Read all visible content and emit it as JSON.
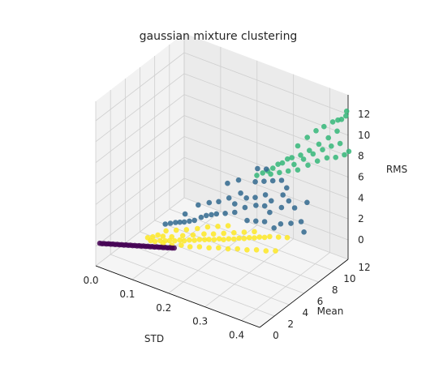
{
  "chart_data": {
    "type": "scatter",
    "projection": "3d",
    "title": "gaussian mixture clustering",
    "xlabel": "STD",
    "ylabel": "Mean",
    "zlabel": "RMS",
    "xlim": [
      0.0,
      0.45
    ],
    "ylim": [
      0,
      12
    ],
    "zlim": [
      0,
      12
    ],
    "xticks": [
      "0.0",
      "0.1",
      "0.2",
      "0.3",
      "0.4"
    ],
    "yticks": [
      "0",
      "2",
      "4",
      "6",
      "8",
      "10",
      "12"
    ],
    "zticks": [
      "0",
      "2",
      "4",
      "6",
      "8",
      "10",
      "12"
    ],
    "grid": true,
    "colormap": "viridis",
    "colors": {
      "cluster_purple": "#440154",
      "cluster_blue": "#31688e",
      "cluster_green": "#35b779",
      "cluster_yellow": "#fde725",
      "pane_left": "#f2f2f2",
      "pane_right": "#ebebeb",
      "pane_floor": "#f5f5f5",
      "grid": "#cfcfcf",
      "text": "#262626"
    },
    "series": [
      {
        "color": "#440154",
        "points": [
          [
            0.005,
            0.3,
            0.2
          ],
          [
            0.01,
            0.35,
            0.2
          ],
          [
            0.015,
            0.4,
            0.25
          ],
          [
            0.02,
            0.45,
            0.25
          ],
          [
            0.025,
            0.5,
            0.3
          ],
          [
            0.03,
            0.55,
            0.3
          ],
          [
            0.035,
            0.6,
            0.35
          ],
          [
            0.04,
            0.65,
            0.35
          ],
          [
            0.045,
            0.7,
            0.4
          ],
          [
            0.05,
            0.75,
            0.4
          ],
          [
            0.055,
            0.8,
            0.45
          ],
          [
            0.06,
            0.85,
            0.45
          ],
          [
            0.065,
            0.9,
            0.5
          ],
          [
            0.07,
            0.95,
            0.5
          ],
          [
            0.075,
            1.0,
            0.55
          ],
          [
            0.08,
            1.05,
            0.55
          ],
          [
            0.085,
            1.1,
            0.6
          ],
          [
            0.09,
            1.15,
            0.6
          ],
          [
            0.095,
            1.2,
            0.65
          ],
          [
            0.1,
            1.25,
            0.65
          ],
          [
            0.105,
            1.3,
            0.7
          ],
          [
            0.11,
            1.35,
            0.7
          ],
          [
            0.115,
            1.4,
            0.75
          ],
          [
            0.12,
            1.45,
            0.75
          ],
          [
            0.125,
            1.5,
            0.8
          ],
          [
            0.13,
            1.55,
            0.8
          ],
          [
            0.135,
            1.6,
            0.85
          ],
          [
            0.14,
            1.65,
            0.85
          ],
          [
            0.145,
            1.7,
            0.9
          ],
          [
            0.15,
            1.75,
            0.9
          ],
          [
            0.155,
            1.8,
            0.95
          ],
          [
            0.16,
            1.85,
            0.95
          ],
          [
            0.165,
            1.9,
            1.0
          ],
          [
            0.17,
            1.95,
            1.0
          ],
          [
            0.175,
            2.0,
            1.05
          ]
        ]
      },
      {
        "color": "#31688e",
        "points": [
          [
            0.2,
            6.8,
            3.2
          ],
          [
            0.22,
            7.2,
            3.6
          ],
          [
            0.24,
            7.0,
            3.4
          ],
          [
            0.26,
            7.6,
            3.9
          ],
          [
            0.28,
            7.8,
            4.1
          ],
          [
            0.3,
            8.2,
            4.4
          ],
          [
            0.32,
            8.0,
            4.2
          ],
          [
            0.25,
            6.5,
            3.0
          ],
          [
            0.27,
            6.9,
            3.5
          ],
          [
            0.29,
            7.4,
            3.7
          ],
          [
            0.31,
            7.6,
            3.8
          ],
          [
            0.33,
            7.3,
            3.6
          ],
          [
            0.35,
            7.9,
            4.0
          ],
          [
            0.36,
            8.4,
            4.5
          ],
          [
            0.34,
            8.6,
            4.7
          ],
          [
            0.23,
            6.2,
            2.8
          ],
          [
            0.21,
            6.0,
            2.6
          ],
          [
            0.19,
            5.6,
            2.4
          ],
          [
            0.18,
            5.4,
            2.2
          ],
          [
            0.17,
            5.0,
            2.0
          ],
          [
            0.16,
            4.8,
            1.9
          ],
          [
            0.15,
            4.6,
            1.8
          ],
          [
            0.14,
            4.5,
            1.7
          ],
          [
            0.13,
            4.4,
            1.6
          ],
          [
            0.24,
            7.8,
            4.0
          ],
          [
            0.26,
            8.8,
            4.8
          ],
          [
            0.28,
            9.0,
            5.0
          ],
          [
            0.3,
            9.2,
            5.2
          ],
          [
            0.32,
            9.4,
            5.4
          ],
          [
            0.34,
            9.1,
            5.1
          ],
          [
            0.22,
            8.5,
            4.6
          ],
          [
            0.2,
            8.0,
            4.3
          ],
          [
            0.38,
            8.2,
            4.2
          ],
          [
            0.4,
            8.9,
            4.6
          ],
          [
            0.37,
            6.8,
            3.3
          ],
          [
            0.39,
            7.2,
            3.4
          ],
          [
            0.41,
            7.6,
            3.6
          ],
          [
            0.36,
            6.4,
            3.0
          ],
          [
            0.33,
            6.6,
            3.1
          ],
          [
            0.18,
            6.5,
            3.0
          ],
          [
            0.16,
            6.0,
            2.8
          ],
          [
            0.2,
            5.8,
            2.5
          ],
          [
            0.25,
            9.6,
            5.5
          ],
          [
            0.27,
            9.8,
            5.6
          ],
          [
            0.43,
            7.0,
            3.2
          ],
          [
            0.29,
            6.2,
            2.9
          ],
          [
            0.31,
            6.4,
            3.0
          ],
          [
            0.12,
            4.2,
            1.5
          ],
          [
            0.11,
            4.0,
            1.4
          ],
          [
            0.14,
            5.2,
            2.1
          ]
        ]
      },
      {
        "color": "#35b779",
        "points": [
          [
            0.3,
            10.5,
            6.2
          ],
          [
            0.32,
            10.8,
            6.8
          ],
          [
            0.34,
            11.0,
            7.2
          ],
          [
            0.36,
            11.2,
            7.8
          ],
          [
            0.38,
            11.5,
            8.5
          ],
          [
            0.4,
            11.8,
            9.2
          ],
          [
            0.42,
            12.0,
            10.0
          ],
          [
            0.41,
            11.9,
            10.8
          ],
          [
            0.43,
            12.1,
            11.2
          ],
          [
            0.44,
            12.2,
            11.6
          ],
          [
            0.35,
            11.4,
            8.8
          ],
          [
            0.37,
            11.6,
            9.6
          ],
          [
            0.39,
            11.7,
            10.2
          ],
          [
            0.33,
            11.1,
            7.9
          ],
          [
            0.31,
            10.7,
            6.6
          ],
          [
            0.29,
            10.4,
            6.0
          ],
          [
            0.28,
            10.2,
            5.6
          ],
          [
            0.27,
            10.0,
            5.3
          ],
          [
            0.26,
            9.8,
            5.1
          ],
          [
            0.36,
            11.0,
            6.5
          ],
          [
            0.38,
            11.3,
            7.0
          ],
          [
            0.4,
            11.6,
            7.4
          ],
          [
            0.42,
            11.8,
            7.6
          ],
          [
            0.44,
            12.0,
            8.0
          ],
          [
            0.45,
            12.1,
            8.4
          ],
          [
            0.34,
            10.6,
            6.0
          ],
          [
            0.32,
            10.3,
            5.8
          ],
          [
            0.43,
            11.9,
            9.0
          ],
          [
            0.41,
            11.7,
            8.6
          ],
          [
            0.39,
            11.5,
            8.1
          ],
          [
            0.37,
            11.2,
            7.6
          ],
          [
            0.35,
            10.9,
            7.0
          ],
          [
            0.33,
            10.6,
            6.4
          ],
          [
            0.3,
            10.1,
            5.5
          ],
          [
            0.28,
            9.9,
            5.2
          ],
          [
            0.25,
            9.5,
            4.9
          ],
          [
            0.44,
            12.3,
            12.0
          ],
          [
            0.42,
            12.1,
            11.0
          ]
        ]
      },
      {
        "color": "#fde725",
        "points": [
          [
            0.1,
            2.5,
            0.5
          ],
          [
            0.11,
            2.6,
            0.5
          ],
          [
            0.12,
            2.8,
            0.6
          ],
          [
            0.13,
            3.0,
            0.6
          ],
          [
            0.14,
            3.1,
            0.7
          ],
          [
            0.15,
            3.3,
            0.7
          ],
          [
            0.16,
            3.5,
            0.8
          ],
          [
            0.17,
            3.6,
            0.8
          ],
          [
            0.18,
            3.8,
            0.9
          ],
          [
            0.19,
            4.0,
            0.9
          ],
          [
            0.2,
            4.2,
            1.0
          ],
          [
            0.21,
            4.4,
            1.0
          ],
          [
            0.22,
            4.5,
            1.1
          ],
          [
            0.23,
            4.7,
            1.1
          ],
          [
            0.24,
            4.9,
            1.2
          ],
          [
            0.25,
            5.0,
            1.2
          ],
          [
            0.26,
            5.2,
            1.3
          ],
          [
            0.27,
            5.4,
            1.3
          ],
          [
            0.28,
            5.6,
            1.4
          ],
          [
            0.29,
            5.8,
            1.4
          ],
          [
            0.3,
            6.0,
            1.5
          ],
          [
            0.31,
            6.2,
            1.5
          ],
          [
            0.32,
            6.4,
            1.6
          ],
          [
            0.33,
            6.6,
            1.6
          ],
          [
            0.34,
            6.8,
            1.7
          ],
          [
            0.12,
            3.2,
            0.8
          ],
          [
            0.14,
            3.4,
            0.9
          ],
          [
            0.16,
            3.9,
            1.0
          ],
          [
            0.18,
            4.3,
            1.1
          ],
          [
            0.2,
            4.8,
            1.2
          ],
          [
            0.22,
            5.1,
            1.3
          ],
          [
            0.24,
            5.5,
            1.4
          ],
          [
            0.26,
            5.9,
            1.5
          ],
          [
            0.28,
            6.3,
            1.6
          ],
          [
            0.3,
            6.7,
            1.7
          ],
          [
            0.13,
            2.7,
            0.5
          ],
          [
            0.15,
            2.9,
            0.5
          ],
          [
            0.17,
            3.2,
            0.6
          ],
          [
            0.19,
            3.4,
            0.6
          ],
          [
            0.21,
            3.7,
            0.7
          ],
          [
            0.23,
            4.0,
            0.7
          ],
          [
            0.25,
            4.3,
            0.8
          ],
          [
            0.27,
            4.6,
            0.8
          ],
          [
            0.29,
            4.9,
            0.9
          ],
          [
            0.31,
            5.2,
            0.9
          ],
          [
            0.33,
            5.5,
            1.0
          ],
          [
            0.35,
            5.8,
            1.0
          ],
          [
            0.37,
            6.1,
            1.1
          ],
          [
            0.36,
            7.0,
            1.8
          ],
          [
            0.38,
            7.2,
            1.9
          ],
          [
            0.11,
            3.0,
            0.9
          ],
          [
            0.12,
            3.6,
            1.1
          ],
          [
            0.14,
            4.0,
            1.2
          ],
          [
            0.16,
            4.4,
            1.3
          ],
          [
            0.18,
            4.9,
            1.4
          ],
          [
            0.1,
            2.8,
            0.7
          ],
          [
            0.09,
            2.6,
            0.6
          ],
          [
            0.2,
            5.3,
            1.6
          ],
          [
            0.22,
            5.7,
            1.7
          ],
          [
            0.24,
            6.1,
            1.8
          ]
        ]
      }
    ]
  }
}
